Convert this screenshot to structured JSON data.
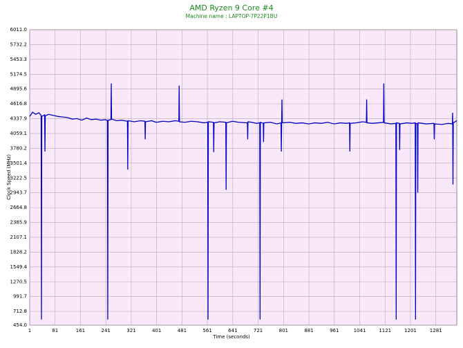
{
  "chart_data": {
    "type": "line",
    "title": "AMD Ryzen 9 Core #4",
    "subtitle": "Machine name : LAPTOP-7P22P1BU",
    "x_label": "Time (seconds)",
    "y_label": "Clock Speed (MHz)",
    "grid": true,
    "xlim": [
      1,
      1347
    ],
    "ylim": [
      454,
      6011
    ],
    "xticks": [
      1,
      81,
      161,
      241,
      321,
      401,
      481,
      561,
      641,
      721,
      801,
      881,
      961,
      1041,
      1121,
      1201,
      1281
    ],
    "yticks": [
      {
        "value": 454,
        "label": "454.0"
      },
      712.8,
      991.7,
      1270.5,
      1549.4,
      1828.2,
      2107.1,
      2385.9,
      2664.8,
      2943.7,
      3222.5,
      3501.4,
      3780.2,
      4059.1,
      4337.9,
      4616.8,
      4895.6,
      5174.5,
      5453.3,
      5732.2,
      {
        "value": 6011,
        "label": "6011.0"
      }
    ],
    "series": [
      {
        "name": "Core #4",
        "color": "#0000c0",
        "x": [
          1,
          10,
          20,
          30,
          37,
          38,
          39,
          48,
          49,
          50,
          60,
          75,
          90,
          105,
          120,
          135,
          150,
          165,
          180,
          195,
          210,
          225,
          240,
          246,
          247,
          248,
          257,
          258,
          259,
          275,
          290,
          309,
          310,
          311,
          330,
          350,
          364,
          365,
          366,
          385,
          400,
          420,
          440,
          460,
          471,
          472,
          473,
          490,
          510,
          530,
          550,
          562,
          563,
          564,
          580,
          581,
          582,
          600,
          619,
          620,
          621,
          640,
          660,
          687,
          688,
          689,
          700,
          715,
          726,
          727,
          728,
          737,
          738,
          739,
          760,
          780,
          793,
          794,
          795,
          796,
          797,
          820,
          840,
          860,
          880,
          900,
          920,
          940,
          960,
          980,
          1000,
          1009,
          1010,
          1011,
          1030,
          1050,
          1062,
          1063,
          1064,
          1080,
          1100,
          1116,
          1117,
          1118,
          1140,
          1155,
          1156,
          1157,
          1166,
          1167,
          1168,
          1190,
          1205,
          1216,
          1217,
          1218,
          1223,
          1224,
          1225,
          1250,
          1275,
          1276,
          1277,
          1300,
          1320,
          1333,
          1334,
          1335,
          1336,
          1347
        ],
        "values": [
          4380,
          4460,
          4420,
          4450,
          4400,
          560,
          4380,
          4410,
          3720,
          4390,
          4420,
          4400,
          4380,
          4370,
          4360,
          4330,
          4340,
          4310,
          4350,
          4320,
          4330,
          4310,
          4320,
          4300,
          560,
          4310,
          4320,
          5000,
          4330,
          4300,
          4310,
          4290,
          3380,
          4300,
          4280,
          4300,
          4290,
          3950,
          4280,
          4300,
          4270,
          4290,
          4280,
          4300,
          4290,
          4960,
          4280,
          4270,
          4290,
          4280,
          4260,
          4270,
          560,
          4280,
          4270,
          3710,
          4260,
          4280,
          4270,
          3000,
          4260,
          4290,
          4270,
          4260,
          3950,
          4280,
          4270,
          4250,
          4260,
          560,
          4270,
          4250,
          3900,
          4260,
          4270,
          4240,
          4260,
          3720,
          4250,
          4700,
          4260,
          4270,
          4250,
          4260,
          4240,
          4260,
          4250,
          4270,
          4240,
          4260,
          4250,
          4260,
          3720,
          4250,
          4260,
          4280,
          4270,
          4700,
          4260,
          4250,
          4260,
          4270,
          5000,
          4260,
          4240,
          4250,
          560,
          4260,
          4250,
          3750,
          4240,
          4260,
          4250,
          4260,
          560,
          4250,
          4240,
          2950,
          4260,
          4240,
          4250,
          3950,
          4240,
          4230,
          4250,
          4240,
          4450,
          3100,
          4260,
          4300
        ]
      }
    ]
  }
}
